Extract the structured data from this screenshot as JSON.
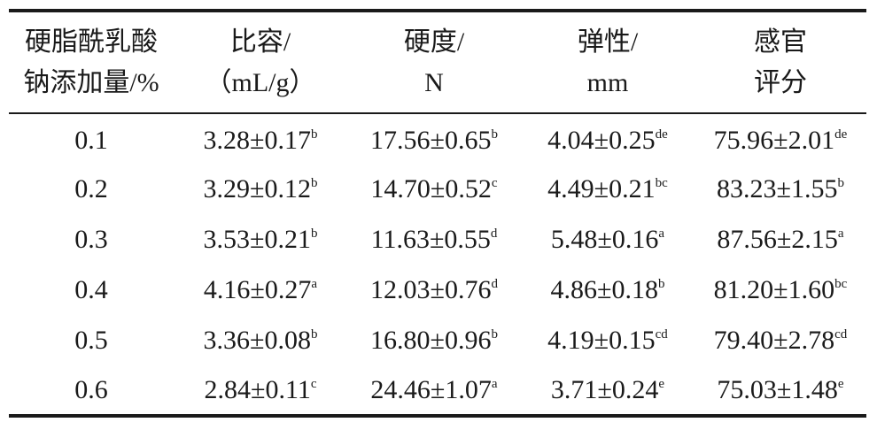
{
  "table": {
    "headers": [
      [
        "硬脂酰乳酸",
        "钠添加量/%"
      ],
      [
        "比容/",
        "（mL/g）"
      ],
      [
        "硬度/",
        "N"
      ],
      [
        "弹性/",
        "mm"
      ],
      [
        "感官",
        "评分"
      ]
    ],
    "rows": [
      {
        "dose": "0.1",
        "specific_volume": {
          "value": "3.28±0.17",
          "sup": "b"
        },
        "hardness": {
          "value": "17.56±0.65",
          "sup": "b"
        },
        "springiness": {
          "value": "4.04±0.25",
          "sup": "de"
        },
        "sensory": {
          "value": "75.96±2.01",
          "sup": "de"
        }
      },
      {
        "dose": "0.2",
        "specific_volume": {
          "value": "3.29±0.12",
          "sup": "b"
        },
        "hardness": {
          "value": "14.70±0.52",
          "sup": "c"
        },
        "springiness": {
          "value": "4.49±0.21",
          "sup": "bc"
        },
        "sensory": {
          "value": "83.23±1.55",
          "sup": "b"
        }
      },
      {
        "dose": "0.3",
        "specific_volume": {
          "value": "3.53±0.21",
          "sup": "b"
        },
        "hardness": {
          "value": "11.63±0.55",
          "sup": "d"
        },
        "springiness": {
          "value": "5.48±0.16",
          "sup": "a"
        },
        "sensory": {
          "value": "87.56±2.15",
          "sup": "a"
        }
      },
      {
        "dose": "0.4",
        "specific_volume": {
          "value": "4.16±0.27",
          "sup": "a"
        },
        "hardness": {
          "value": "12.03±0.76",
          "sup": "d"
        },
        "springiness": {
          "value": "4.86±0.18",
          "sup": "b"
        },
        "sensory": {
          "value": "81.20±1.60",
          "sup": "bc"
        }
      },
      {
        "dose": "0.5",
        "specific_volume": {
          "value": "3.36±0.08",
          "sup": "b"
        },
        "hardness": {
          "value": "16.80±0.96",
          "sup": "b"
        },
        "springiness": {
          "value": "4.19±0.15",
          "sup": "cd"
        },
        "sensory": {
          "value": "79.40±2.78",
          "sup": "cd"
        }
      },
      {
        "dose": "0.6",
        "specific_volume": {
          "value": "2.84±0.11",
          "sup": "c"
        },
        "hardness": {
          "value": "24.46±1.07",
          "sup": "a"
        },
        "springiness": {
          "value": "3.71±0.24",
          "sup": "e"
        },
        "sensory": {
          "value": "75.03±1.48",
          "sup": "e"
        }
      }
    ]
  }
}
